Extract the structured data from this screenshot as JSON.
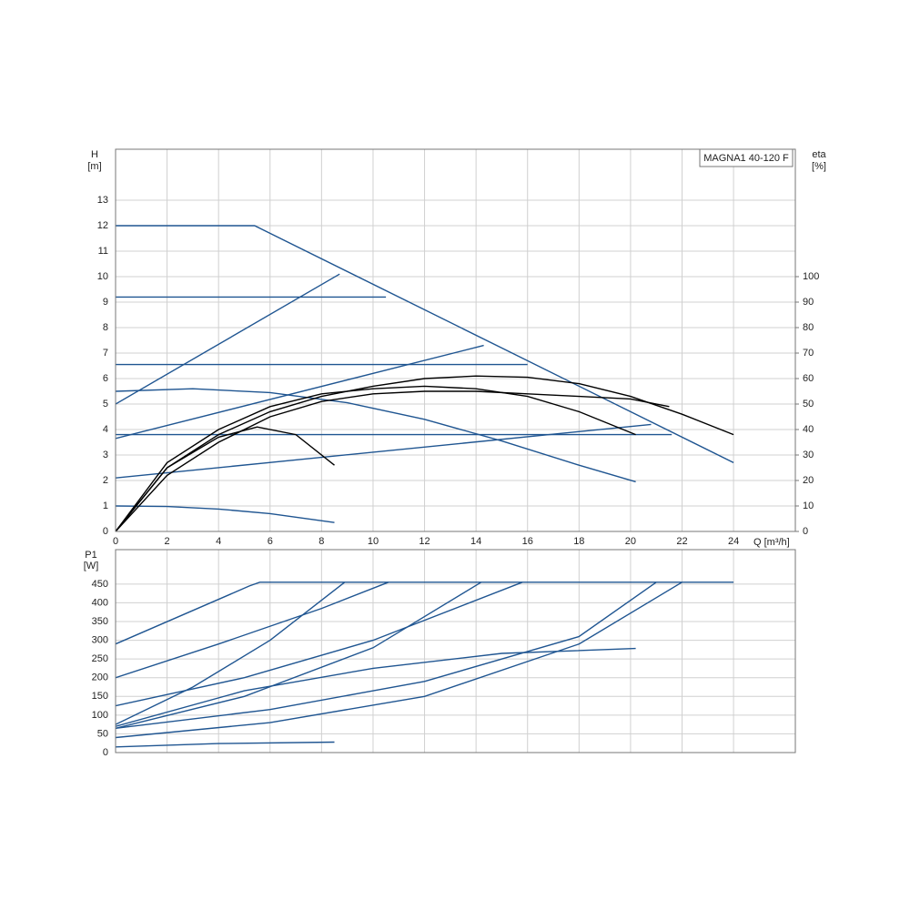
{
  "chart_data": [
    {
      "type": "line",
      "legend": "MAGNA1 40-120 F",
      "y_label": "H",
      "y_unit": "[m]",
      "y2_label": "eta",
      "y2_unit": "[%]",
      "x_label": "Q [m³/h]",
      "xlim": [
        0,
        26.4
      ],
      "xticks": [
        0,
        2,
        4,
        6,
        8,
        10,
        12,
        14,
        16,
        18,
        20,
        22,
        24
      ],
      "ylim": [
        0,
        15
      ],
      "yticks": [
        0,
        1,
        2,
        3,
        4,
        5,
        6,
        7,
        8,
        9,
        10,
        11,
        12,
        13
      ],
      "y2lim": [
        0,
        150
      ],
      "y2ticks": [
        0,
        10,
        20,
        30,
        40,
        50,
        60,
        70,
        80,
        90,
        100
      ],
      "grid": true,
      "series": [
        {
          "color": "#1f5591",
          "x": [
            0,
            5.4,
            24
          ],
          "values": [
            12,
            12,
            2.7
          ]
        },
        {
          "color": "#1f5591",
          "x": [
            0,
            10.5
          ],
          "values": [
            9.2,
            9.2
          ]
        },
        {
          "color": "#1f5591",
          "x": [
            0,
            16
          ],
          "values": [
            6.55,
            6.55
          ]
        },
        {
          "color": "#1f5591",
          "x": [
            0,
            21.6
          ],
          "values": [
            3.8,
            3.8
          ]
        },
        {
          "color": "#1f5591",
          "x": [
            0,
            8.7
          ],
          "values": [
            5,
            10.1
          ]
        },
        {
          "color": "#1f5591",
          "x": [
            0,
            14.3
          ],
          "values": [
            3.65,
            7.3
          ]
        },
        {
          "color": "#1f5591",
          "x": [
            0,
            20.8
          ],
          "values": [
            2.1,
            4.2
          ]
        },
        {
          "color": "#1f5591",
          "x": [
            0,
            3,
            6,
            9,
            12,
            15,
            18,
            20.2
          ],
          "values": [
            5.5,
            5.6,
            5.45,
            5.05,
            4.4,
            3.55,
            2.6,
            1.95
          ]
        },
        {
          "color": "#1f5591",
          "x": [
            0,
            2,
            4,
            6,
            8.5
          ],
          "values": [
            1,
            0.98,
            0.88,
            0.7,
            0.35
          ]
        },
        {
          "color": "#000000",
          "axis": "y2",
          "x": [
            0,
            2,
            4,
            6,
            8,
            10,
            12,
            14,
            16,
            18,
            20,
            22,
            24
          ],
          "values": [
            0,
            25,
            38,
            47,
            53,
            57,
            60,
            61,
            60.5,
            58,
            53,
            46,
            38
          ]
        },
        {
          "color": "#000000",
          "axis": "y2",
          "x": [
            0,
            2,
            4,
            6,
            8,
            10,
            12,
            14,
            16,
            18,
            20.2
          ],
          "values": [
            0,
            27,
            40,
            49,
            54,
            56,
            57,
            56,
            53,
            47,
            38
          ]
        },
        {
          "color": "#000000",
          "axis": "y2",
          "x": [
            0,
            2,
            4,
            5.5,
            7,
            8.5
          ],
          "values": [
            0,
            25,
            37,
            41,
            38,
            26
          ]
        },
        {
          "color": "#000000",
          "axis": "y2",
          "x": [
            0,
            2,
            4,
            6,
            8,
            10,
            12,
            14,
            16,
            18,
            20,
            21.5
          ],
          "values": [
            0,
            22,
            35,
            45,
            51,
            54,
            55,
            55,
            54,
            53,
            52,
            49
          ]
        }
      ]
    },
    {
      "type": "line",
      "y_label": "P1",
      "y_unit": "[W]",
      "xlim": [
        0,
        26.4
      ],
      "ylim": [
        0,
        542
      ],
      "yticks": [
        0,
        50,
        100,
        150,
        200,
        250,
        300,
        350,
        400,
        450
      ],
      "grid": true,
      "series": [
        {
          "color": "#1f5591",
          "x": [
            0,
            5.2,
            5.6,
            24
          ],
          "values": [
            290,
            445,
            455,
            455
          ]
        },
        {
          "color": "#1f5591",
          "x": [
            0,
            4,
            8,
            10.6
          ],
          "values": [
            200,
            290,
            385,
            455
          ]
        },
        {
          "color": "#1f5591",
          "x": [
            0,
            3,
            6,
            8.9
          ],
          "values": [
            75,
            175,
            300,
            455
          ]
        },
        {
          "color": "#1f5591",
          "x": [
            0,
            5,
            10,
            15.8
          ],
          "values": [
            125,
            200,
            300,
            455
          ]
        },
        {
          "color": "#1f5591",
          "x": [
            0,
            5,
            10,
            14.2
          ],
          "values": [
            65,
            150,
            280,
            455
          ]
        },
        {
          "color": "#1f5591",
          "x": [
            0,
            6,
            12,
            18,
            21
          ],
          "values": [
            65,
            115,
            190,
            310,
            455
          ]
        },
        {
          "color": "#1f5591",
          "x": [
            0,
            6,
            12,
            18,
            22
          ],
          "values": [
            40,
            80,
            150,
            290,
            455
          ]
        },
        {
          "color": "#1f5591",
          "x": [
            0,
            5,
            10,
            15,
            20.2
          ],
          "values": [
            70,
            165,
            225,
            265,
            278
          ]
        },
        {
          "color": "#1f5591",
          "x": [
            0,
            4,
            8.5
          ],
          "values": [
            15,
            24,
            28
          ]
        }
      ]
    }
  ]
}
